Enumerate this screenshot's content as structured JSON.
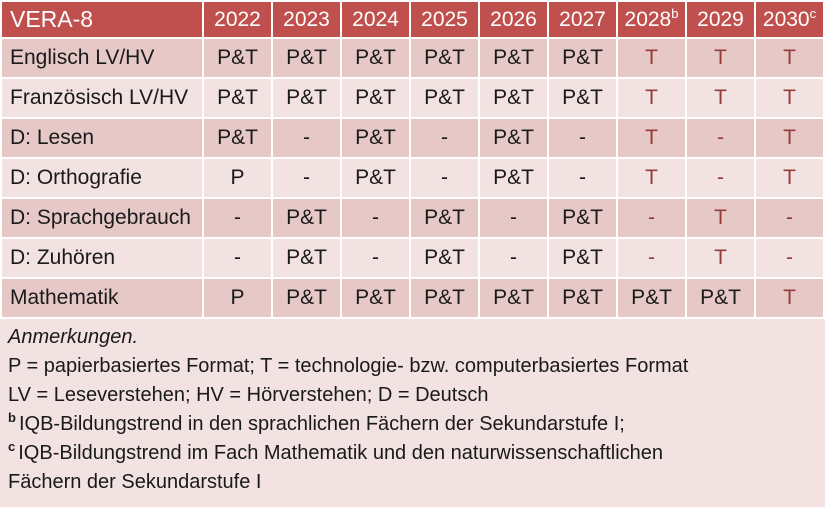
{
  "colors": {
    "header_bg": "#C0504D",
    "band_dark": "#E6C9C7",
    "band_light": "#F2E2E1",
    "accent_red_text": "#963A37",
    "header_text": "#FFFFFF",
    "body_text": "#1A1A1A",
    "separator": "#FFFFFF"
  },
  "table": {
    "title": "VERA-8",
    "columns": [
      {
        "label": "2022",
        "sup": ""
      },
      {
        "label": "2023",
        "sup": ""
      },
      {
        "label": "2024",
        "sup": ""
      },
      {
        "label": "2025",
        "sup": ""
      },
      {
        "label": "2026",
        "sup": ""
      },
      {
        "label": "2027",
        "sup": ""
      },
      {
        "label": "2028",
        "sup": "b"
      },
      {
        "label": "2029",
        "sup": ""
      },
      {
        "label": "2030",
        "sup": "c"
      }
    ],
    "rows": [
      {
        "label": "Englisch LV/HV",
        "band": "dark",
        "cells": [
          {
            "text": "P&T",
            "red": false
          },
          {
            "text": "P&T",
            "red": false
          },
          {
            "text": "P&T",
            "red": false
          },
          {
            "text": "P&T",
            "red": false
          },
          {
            "text": "P&T",
            "red": false
          },
          {
            "text": "P&T",
            "red": false
          },
          {
            "text": "T",
            "red": true
          },
          {
            "text": "T",
            "red": true
          },
          {
            "text": "T",
            "red": true
          }
        ]
      },
      {
        "label": "Französisch LV/HV",
        "band": "light",
        "cells": [
          {
            "text": "P&T",
            "red": false
          },
          {
            "text": "P&T",
            "red": false
          },
          {
            "text": "P&T",
            "red": false
          },
          {
            "text": "P&T",
            "red": false
          },
          {
            "text": "P&T",
            "red": false
          },
          {
            "text": "P&T",
            "red": false
          },
          {
            "text": "T",
            "red": true
          },
          {
            "text": "T",
            "red": true
          },
          {
            "text": "T",
            "red": true
          }
        ]
      },
      {
        "label": "D: Lesen",
        "band": "dark",
        "cells": [
          {
            "text": "P&T",
            "red": false
          },
          {
            "text": "-",
            "red": false
          },
          {
            "text": "P&T",
            "red": false
          },
          {
            "text": "-",
            "red": false
          },
          {
            "text": "P&T",
            "red": false
          },
          {
            "text": "-",
            "red": false
          },
          {
            "text": "T",
            "red": true
          },
          {
            "text": "-",
            "red": true
          },
          {
            "text": "T",
            "red": true
          }
        ]
      },
      {
        "label": "D: Orthografie",
        "band": "light",
        "cells": [
          {
            "text": "P",
            "red": false
          },
          {
            "text": "-",
            "red": false
          },
          {
            "text": "P&T",
            "red": false
          },
          {
            "text": "-",
            "red": false
          },
          {
            "text": "P&T",
            "red": false
          },
          {
            "text": "-",
            "red": false
          },
          {
            "text": "T",
            "red": true
          },
          {
            "text": "-",
            "red": true
          },
          {
            "text": "T",
            "red": true
          }
        ]
      },
      {
        "label": "D: Sprachgebrauch",
        "band": "dark",
        "cells": [
          {
            "text": "-",
            "red": false
          },
          {
            "text": "P&T",
            "red": false
          },
          {
            "text": "-",
            "red": false
          },
          {
            "text": "P&T",
            "red": false
          },
          {
            "text": "-",
            "red": false
          },
          {
            "text": "P&T",
            "red": false
          },
          {
            "text": "-",
            "red": true
          },
          {
            "text": "T",
            "red": true
          },
          {
            "text": "-",
            "red": true
          }
        ]
      },
      {
        "label": "D: Zuhören",
        "band": "light",
        "cells": [
          {
            "text": "-",
            "red": false
          },
          {
            "text": "P&T",
            "red": false
          },
          {
            "text": "-",
            "red": false
          },
          {
            "text": "P&T",
            "red": false
          },
          {
            "text": "-",
            "red": false
          },
          {
            "text": "P&T",
            "red": false
          },
          {
            "text": "-",
            "red": true
          },
          {
            "text": "T",
            "red": true
          },
          {
            "text": "-",
            "red": true
          }
        ]
      },
      {
        "label": "Mathematik",
        "band": "dark",
        "cells": [
          {
            "text": "P",
            "red": false
          },
          {
            "text": "P&T",
            "red": false
          },
          {
            "text": "P&T",
            "red": false
          },
          {
            "text": "P&T",
            "red": false
          },
          {
            "text": "P&T",
            "red": false
          },
          {
            "text": "P&T",
            "red": false
          },
          {
            "text": "P&T",
            "red": false
          },
          {
            "text": "P&T",
            "red": false
          },
          {
            "text": "T",
            "red": true
          }
        ]
      }
    ]
  },
  "notes": {
    "lines": [
      {
        "sup": "",
        "text": "Anmerkungen.",
        "italic": true
      },
      {
        "sup": "",
        "text": "P = papierbasiertes Format; T = technologie- bzw. computerbasiertes Format",
        "italic": false
      },
      {
        "sup": "",
        "text": "LV = Leseverstehen; HV = Hörverstehen; D = Deutsch",
        "italic": false
      },
      {
        "sup": "b",
        "text": "IQB-Bildungstrend in den sprachlichen Fächern der Sekundarstufe I;",
        "italic": false
      },
      {
        "sup": "c",
        "text": "IQB-Bildungstrend im Fach Mathematik und den naturwissenschaftlichen",
        "italic": false
      },
      {
        "sup": "",
        "text": "Fächern der Sekundarstufe I",
        "italic": false
      }
    ]
  }
}
